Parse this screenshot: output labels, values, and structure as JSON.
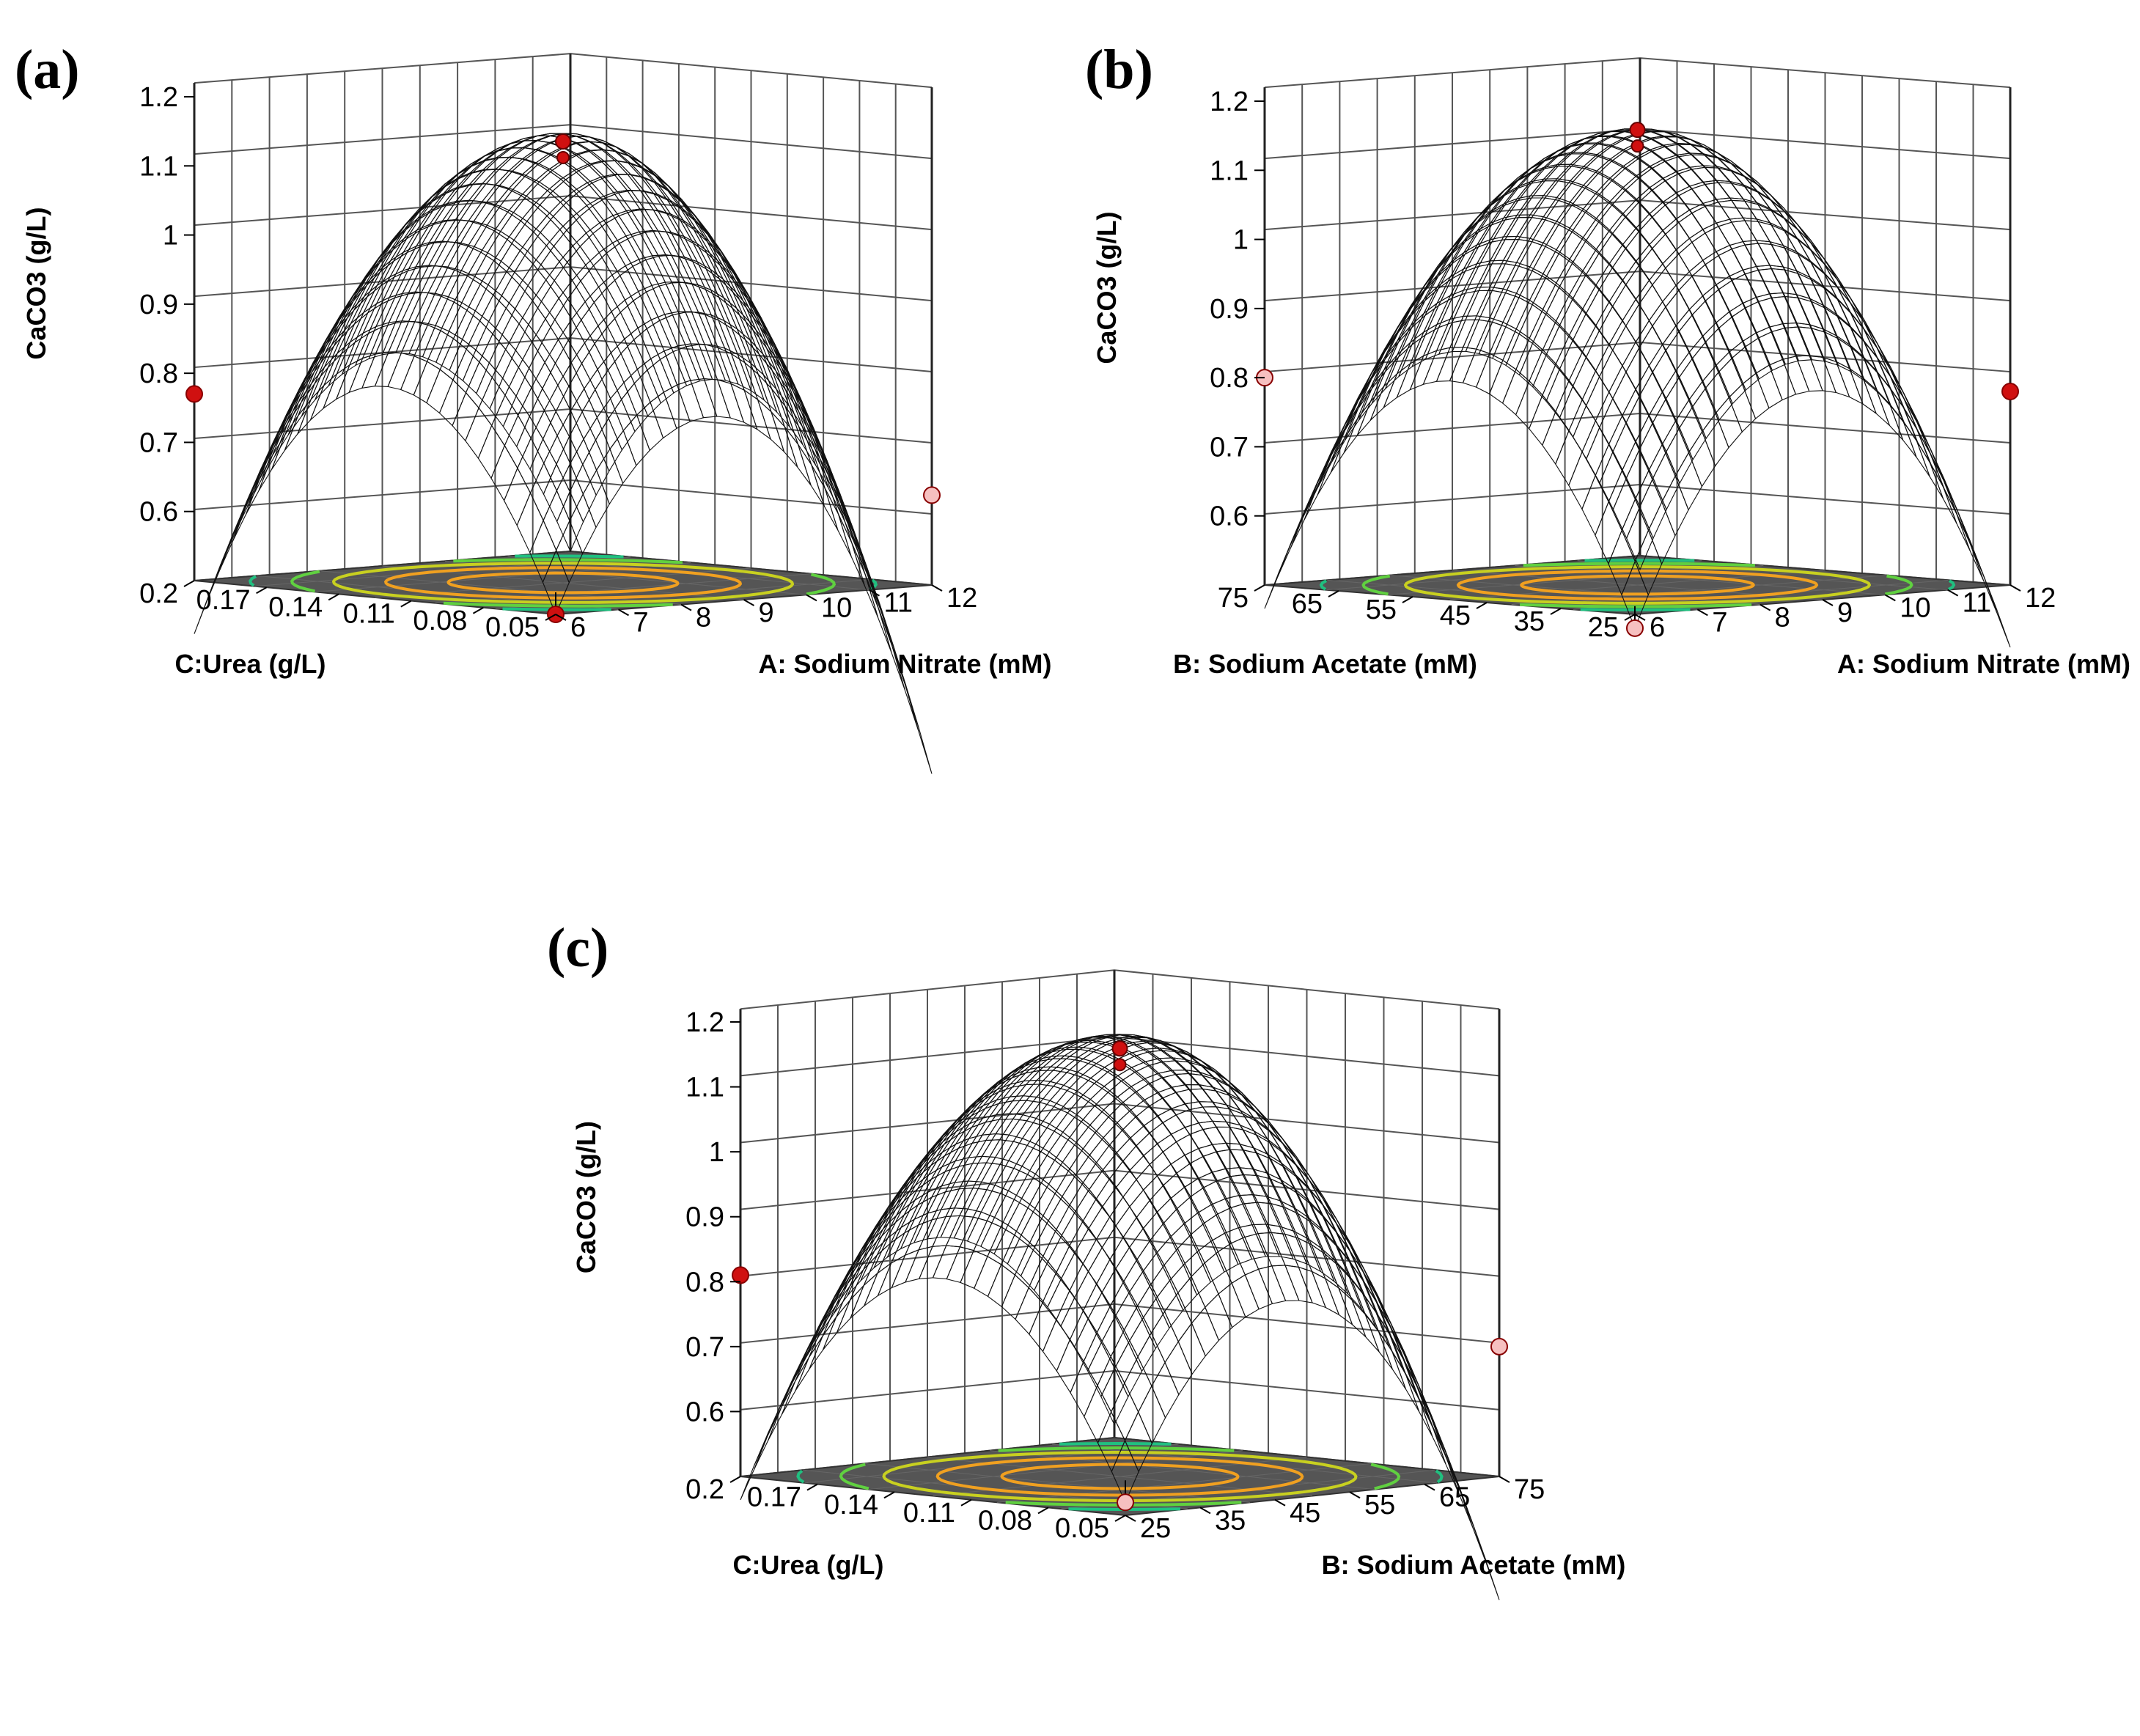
{
  "figure": {
    "description_labels": [
      "(a)",
      "(b)",
      "(c)"
    ]
  },
  "chart_data": [
    {
      "type": "surface3d",
      "panel_label": "(a)",
      "title": "",
      "zlabel": "CaCO3 (g/L)",
      "zlim": [
        0.5,
        1.2
      ],
      "zticks": [
        "0.6",
        "0.7",
        "0.8",
        "0.9",
        "1",
        "1.1",
        "1.2"
      ],
      "xlabel": "A: Sodium Nitrate (mM)",
      "xticks": [
        "6",
        "7",
        "8",
        "9",
        "10",
        "11",
        "12"
      ],
      "ylabel": "C:Urea (g/L)",
      "yticks": [
        "0.05",
        "0.08",
        "0.11",
        "0.14",
        "0.17",
        "0.2"
      ],
      "corner_values": {
        "low_low": 0.5,
        "left": 0.77,
        "right": 0.63,
        "peak": 1.15
      },
      "design_points": [
        {
          "label": "left",
          "value": 0.77,
          "color": "#d01010"
        },
        {
          "label": "right",
          "value": 0.63,
          "color": "#f6c0c0"
        },
        {
          "label": "center-top",
          "value": 1.13,
          "color": "#d01010"
        },
        {
          "label": "bottom",
          "value": 0.5,
          "color": "#d01010"
        }
      ]
    },
    {
      "type": "surface3d",
      "panel_label": "(b)",
      "title": "",
      "zlabel": "CaCO3 (g/L)",
      "zlim": [
        0.5,
        1.2
      ],
      "zticks": [
        "0.6",
        "0.7",
        "0.8",
        "0.9",
        "1",
        "1.1",
        "1.2"
      ],
      "xlabel": "A: Sodium Nitrate (mM)",
      "xticks": [
        "6",
        "7",
        "8",
        "9",
        "10",
        "11",
        "12"
      ],
      "ylabel": "B: Sodium Acetate (mM)",
      "yticks": [
        "25",
        "35",
        "45",
        "55",
        "65",
        "75"
      ],
      "corner_values": {
        "low_low": 0.48,
        "left": 0.81,
        "right": 0.77,
        "peak": 1.16
      },
      "design_points": [
        {
          "label": "left",
          "value": 0.8,
          "color": "#f6c0c0"
        },
        {
          "label": "right",
          "value": 0.78,
          "color": "#d01010"
        },
        {
          "label": "center-top",
          "value": 1.15,
          "color": "#d01010"
        },
        {
          "label": "bottom",
          "value": 0.48,
          "color": "#f6c0c0"
        }
      ]
    },
    {
      "type": "surface3d",
      "panel_label": "(c)",
      "title": "",
      "zlabel": "CaCO3 (g/L)",
      "zlim": [
        0.5,
        1.2
      ],
      "zticks": [
        "0.6",
        "0.7",
        "0.8",
        "0.9",
        "1",
        "1.1",
        "1.2"
      ],
      "xlabel": "B: Sodium Acetate (mM)",
      "xticks": [
        "25",
        "35",
        "45",
        "55",
        "65",
        "75"
      ],
      "ylabel": "C:Urea (g/L)",
      "yticks": [
        "0.05",
        "0.08",
        "0.11",
        "0.14",
        "0.17",
        "0.2"
      ],
      "corner_values": {
        "low_low": 0.52,
        "left": 0.81,
        "right": 0.7,
        "peak": 1.18
      },
      "design_points": [
        {
          "label": "left",
          "value": 0.81,
          "color": "#d01010"
        },
        {
          "label": "right",
          "value": 0.7,
          "color": "#f6c0c0"
        },
        {
          "label": "center-top",
          "value": 1.15,
          "color": "#d01010"
        },
        {
          "label": "bottom",
          "value": 0.52,
          "color": "#f6c0c0"
        }
      ]
    }
  ]
}
